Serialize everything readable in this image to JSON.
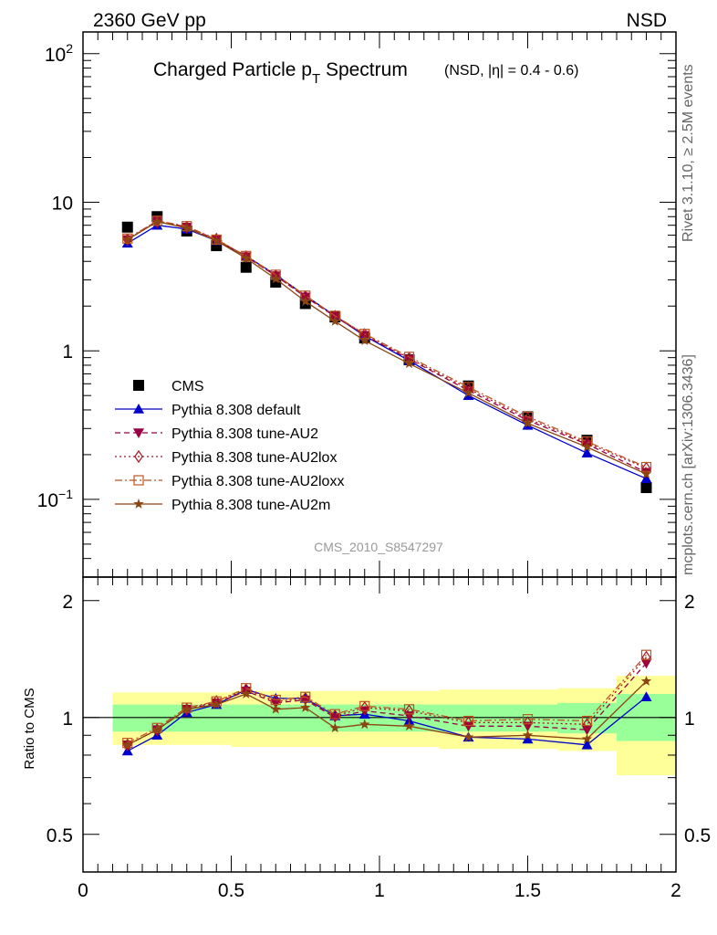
{
  "header": {
    "left": "2360 GeV pp",
    "right": "NSD"
  },
  "side_text": {
    "rivet": "Rivet 3.1.10, ≥ 2.5M events",
    "source": "mcplots.cern.ch [arXiv:1306.3436]"
  },
  "chart_data": [
    {
      "type": "line",
      "title": "Charged Particle p",
      "title_sub": "T",
      "title_rest": " Spectrum",
      "title_suffix": "(NSD, |η| = 0.4 - 0.6)",
      "watermark": "CMS_2010_S8547297",
      "yscale": "log",
      "ylim": [
        0.03,
        140
      ],
      "xlim": [
        0,
        2.0
      ],
      "ytick_labels": [
        "10^2",
        "10",
        "1",
        "10^-1"
      ],
      "legend_placement": "lower-left",
      "x": [
        0.15,
        0.25,
        0.35,
        0.45,
        0.55,
        0.65,
        0.75,
        0.85,
        0.95,
        1.1,
        1.3,
        1.5,
        1.7,
        1.9
      ],
      "series": [
        {
          "name": "CMS",
          "marker": "square",
          "color": "#000000",
          "line": "none",
          "values": [
            6.8,
            8.0,
            6.4,
            5.1,
            3.65,
            2.9,
            2.08,
            1.69,
            1.22,
            0.87,
            0.58,
            0.36,
            0.25,
            0.12
          ]
        },
        {
          "name": "Pythia 8.308 default",
          "marker": "triangle-up",
          "color": "#0000cc",
          "line": "solid",
          "values": [
            5.3,
            7.0,
            6.6,
            5.5,
            4.35,
            3.25,
            2.35,
            1.72,
            1.26,
            0.86,
            0.5,
            0.315,
            0.205,
            0.138
          ]
        },
        {
          "name": "Pythia 8.308 tune-AU2",
          "marker": "triangle-down",
          "color": "#990044",
          "line": "dashed",
          "values": [
            5.6,
            7.5,
            6.8,
            5.6,
            4.3,
            3.2,
            2.3,
            1.7,
            1.27,
            0.88,
            0.54,
            0.34,
            0.235,
            0.152
          ]
        },
        {
          "name": "Pythia 8.308 tune-AU2lox",
          "marker": "diamond-open",
          "color": "#aa1122",
          "line": "dotted",
          "values": [
            5.6,
            7.4,
            6.8,
            5.65,
            4.3,
            3.2,
            2.32,
            1.71,
            1.29,
            0.89,
            0.555,
            0.35,
            0.24,
            0.162
          ]
        },
        {
          "name": "Pythia 8.308 tune-AU2loxx",
          "marker": "square-open",
          "color": "#bb5522",
          "line": "dashdot",
          "values": [
            5.7,
            7.5,
            6.9,
            5.6,
            4.35,
            3.25,
            2.35,
            1.72,
            1.3,
            0.91,
            0.57,
            0.36,
            0.245,
            0.165
          ]
        },
        {
          "name": "Pythia 8.308 tune-AU2m",
          "marker": "star",
          "color": "#8b4513",
          "line": "solid",
          "values": [
            5.6,
            7.4,
            6.7,
            5.5,
            4.2,
            3.05,
            2.15,
            1.58,
            1.17,
            0.82,
            0.52,
            0.325,
            0.225,
            0.148
          ]
        }
      ]
    },
    {
      "type": "line",
      "ylabel": "Ratio to CMS",
      "xlim": [
        0,
        2.0
      ],
      "ylim": [
        0.4,
        2.3
      ],
      "xtick_labels": [
        "0",
        "0.5",
        "1",
        "1.5",
        "2"
      ],
      "ytick_labels": [
        "0.5",
        "1",
        "2"
      ],
      "x": [
        0.15,
        0.25,
        0.35,
        0.45,
        0.55,
        0.65,
        0.75,
        0.85,
        0.95,
        1.1,
        1.3,
        1.5,
        1.7,
        1.9
      ],
      "uncertainty_bands": {
        "edges": [
          0.1,
          0.2,
          0.3,
          0.4,
          0.5,
          0.6,
          0.7,
          0.8,
          0.9,
          1.0,
          1.2,
          1.4,
          1.6,
          1.8,
          2.0
        ],
        "inner": [
          [
            0.92,
            1.08
          ],
          [
            0.92,
            1.08
          ],
          [
            0.92,
            1.08
          ],
          [
            0.92,
            1.08
          ],
          [
            0.92,
            1.08
          ],
          [
            0.92,
            1.08
          ],
          [
            0.92,
            1.08
          ],
          [
            0.92,
            1.08
          ],
          [
            0.92,
            1.08
          ],
          [
            0.92,
            1.08
          ],
          [
            0.92,
            1.08
          ],
          [
            0.92,
            1.08
          ],
          [
            0.91,
            1.09
          ],
          [
            0.87,
            1.15
          ]
        ],
        "outer": [
          [
            0.85,
            1.16
          ],
          [
            0.85,
            1.16
          ],
          [
            0.85,
            1.16
          ],
          [
            0.85,
            1.16
          ],
          [
            0.84,
            1.17
          ],
          [
            0.84,
            1.17
          ],
          [
            0.84,
            1.17
          ],
          [
            0.84,
            1.17
          ],
          [
            0.84,
            1.17
          ],
          [
            0.84,
            1.17
          ],
          [
            0.83,
            1.18
          ],
          [
            0.83,
            1.18
          ],
          [
            0.82,
            1.19
          ],
          [
            0.71,
            1.28
          ]
        ],
        "inner_color": "#99ff99",
        "outer_color": "#ffff99"
      },
      "series": [
        {
          "name": "Pythia 8.308 default",
          "values": [
            0.82,
            0.9,
            1.03,
            1.08,
            1.18,
            1.12,
            1.12,
            1.01,
            1.02,
            0.98,
            0.89,
            0.88,
            0.85,
            1.13
          ]
        },
        {
          "name": "Pythia 8.308 tune-AU2",
          "values": [
            0.85,
            0.93,
            1.05,
            1.09,
            1.17,
            1.09,
            1.11,
            1.0,
            1.04,
            1.01,
            0.95,
            0.95,
            0.93,
            1.38
          ]
        },
        {
          "name": "Pythia 8.308 tune-AU2lox",
          "values": [
            0.85,
            0.93,
            1.05,
            1.1,
            1.18,
            1.1,
            1.12,
            1.01,
            1.06,
            1.04,
            0.97,
            0.97,
            0.96,
            1.43
          ]
        },
        {
          "name": "Pythia 8.308 tune-AU2loxx",
          "values": [
            0.86,
            0.94,
            1.06,
            1.1,
            1.19,
            1.11,
            1.13,
            1.02,
            1.07,
            1.05,
            0.98,
            0.99,
            0.98,
            1.45
          ]
        },
        {
          "name": "Pythia 8.308 tune-AU2m",
          "values": [
            0.85,
            0.93,
            1.05,
            1.08,
            1.15,
            1.05,
            1.06,
            0.94,
            0.96,
            0.95,
            0.89,
            0.9,
            0.88,
            1.24
          ]
        }
      ]
    }
  ]
}
